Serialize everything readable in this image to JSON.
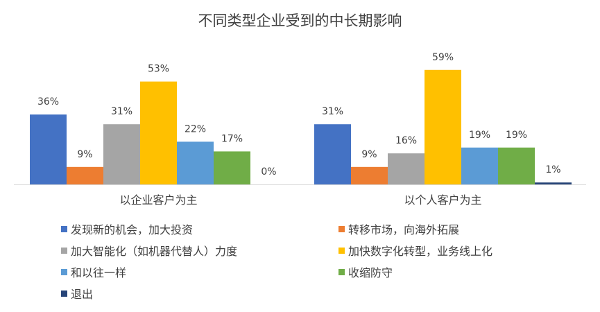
{
  "chart_data": {
    "type": "bar",
    "title": "不同类型企业受到的中长期影响",
    "xlabel": "",
    "ylabel": "",
    "ylim": [
      0,
      60
    ],
    "grid": false,
    "legend_position": "bottom",
    "categories": [
      "以企业客户为主",
      "以个人客户为主"
    ],
    "series": [
      {
        "name": "发现新的机会，加大投资",
        "values": [
          36,
          31
        ],
        "labels": [
          "36%",
          "31%"
        ],
        "color": "#4472C4"
      },
      {
        "name": "转移市场，向海外拓展",
        "values": [
          9,
          9
        ],
        "labels": [
          "9%",
          "9%"
        ],
        "color": "#ED7D31"
      },
      {
        "name": "加大智能化（如机器代替人）力度",
        "values": [
          31,
          16
        ],
        "labels": [
          "31%",
          "16%"
        ],
        "color": "#A5A5A5"
      },
      {
        "name": "加快数字化转型，业务线上化",
        "values": [
          53,
          59
        ],
        "labels": [
          "53%",
          "59%"
        ],
        "color": "#FFC000"
      },
      {
        "name": "和以往一样",
        "values": [
          22,
          19
        ],
        "labels": [
          "22%",
          "19%"
        ],
        "color": "#5B9BD5"
      },
      {
        "name": "收缩防守",
        "values": [
          17,
          19
        ],
        "labels": [
          "17%",
          "19%"
        ],
        "color": "#70AD47"
      },
      {
        "name": "退出",
        "values": [
          0,
          1
        ],
        "labels": [
          "0%",
          "1%"
        ],
        "color": "#264478"
      }
    ]
  }
}
